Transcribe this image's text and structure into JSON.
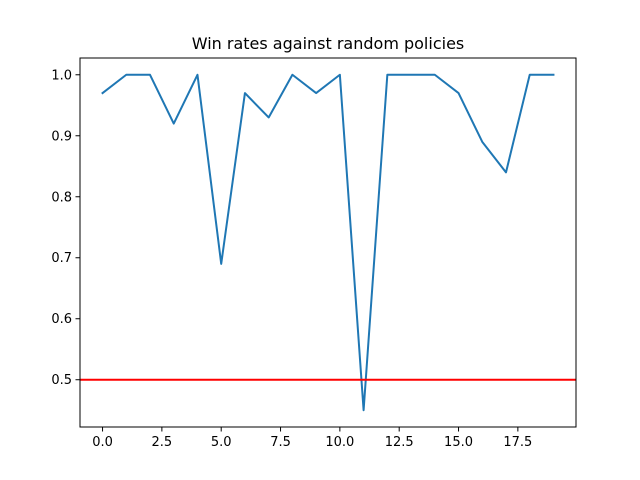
{
  "chart_data": {
    "type": "line",
    "title": "Win rates against random policies",
    "xlabel": "",
    "ylabel": "",
    "x": [
      0,
      1,
      2,
      3,
      4,
      5,
      6,
      7,
      8,
      9,
      10,
      11,
      12,
      13,
      14,
      15,
      16,
      17,
      18,
      19
    ],
    "series": [
      {
        "values": [
          0.97,
          1.0,
          1.0,
          0.92,
          1.0,
          0.69,
          0.97,
          0.93,
          1.0,
          0.97,
          1.0,
          0.45,
          1.0,
          1.0,
          1.0,
          0.97,
          0.89,
          0.84,
          1.0,
          1.0
        ],
        "color": "#1f77b4"
      }
    ],
    "reference_line": {
      "y": 0.5,
      "color": "#ff0000"
    },
    "xlim": [
      -0.95,
      19.95
    ],
    "ylim": [
      0.4225,
      1.0275
    ],
    "xticks": [
      0.0,
      2.5,
      5.0,
      7.5,
      10.0,
      12.5,
      15.0,
      17.5
    ],
    "xtick_labels": [
      "0.0",
      "2.5",
      "5.0",
      "7.5",
      "10.0",
      "12.5",
      "15.0",
      "17.5"
    ],
    "yticks": [
      0.5,
      0.6,
      0.7,
      0.8,
      0.9,
      1.0
    ],
    "ytick_labels": [
      "0.5",
      "0.6",
      "0.7",
      "0.8",
      "0.9",
      "1.0"
    ],
    "grid": false,
    "legend": "none"
  }
}
